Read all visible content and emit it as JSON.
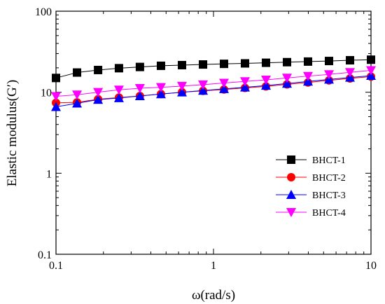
{
  "chart_data": {
    "type": "line",
    "title": "",
    "xlabel": "ω(rad/s)",
    "ylabel": "Elastic modulus(G′)",
    "xscale": "log",
    "yscale": "log",
    "xlim": [
      0.1,
      10
    ],
    "ylim": [
      0.1,
      100
    ],
    "xticks": [
      {
        "value": 0.1,
        "label": "0.1"
      },
      {
        "value": 1,
        "label": "1"
      },
      {
        "value": 10,
        "label": "10"
      }
    ],
    "yticks": [
      {
        "value": 0.1,
        "label": "0.1"
      },
      {
        "value": 1,
        "label": "1"
      },
      {
        "value": 10,
        "label": "10"
      },
      {
        "value": 100,
        "label": "100"
      }
    ],
    "grid": false,
    "legend_position": "right-middle",
    "x": [
      0.1,
      0.136,
      0.185,
      0.251,
      0.341,
      0.464,
      0.631,
      0.858,
      1.166,
      1.585,
      2.154,
      2.929,
      3.981,
      5.412,
      7.356,
      10
    ],
    "series": [
      {
        "name": "BHCT-1",
        "marker": "square",
        "color": "#000000",
        "values": [
          15.0,
          17.5,
          18.8,
          19.8,
          20.5,
          21.2,
          21.6,
          22.0,
          22.4,
          22.7,
          23.1,
          23.5,
          23.9,
          24.3,
          24.8,
          25.2
        ]
      },
      {
        "name": "BHCT-2",
        "marker": "circle",
        "color": "#ff0000",
        "values": [
          7.4,
          7.5,
          8.2,
          8.6,
          9.0,
          9.5,
          10.0,
          10.4,
          10.8,
          11.3,
          11.8,
          12.5,
          13.2,
          14.0,
          14.8,
          15.6
        ]
      },
      {
        "name": "BHCT-3",
        "marker": "triangle-up",
        "color": "#0000ff",
        "values": [
          6.6,
          7.3,
          8.1,
          8.5,
          9.0,
          9.5,
          10.0,
          10.5,
          11.0,
          11.5,
          12.1,
          12.8,
          13.6,
          14.4,
          15.2,
          16.0
        ]
      },
      {
        "name": "BHCT-4",
        "marker": "triangle-down",
        "color": "#ff00ff",
        "values": [
          8.9,
          9.3,
          10.0,
          10.7,
          11.2,
          11.5,
          11.9,
          12.4,
          13.0,
          13.6,
          14.2,
          15.0,
          15.8,
          16.6,
          17.6,
          18.6
        ]
      }
    ]
  }
}
